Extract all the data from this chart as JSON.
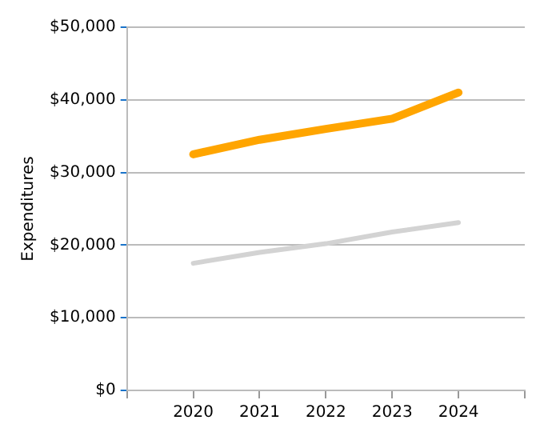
{
  "chart_data": {
    "type": "line",
    "ylabel": "Expenditures",
    "x": [
      2020,
      2021,
      2022,
      2023,
      2024
    ],
    "xlim": [
      2019,
      2025
    ],
    "xticks": [
      2020,
      2021,
      2022,
      2023,
      2024
    ],
    "ylim": [
      0,
      50000
    ],
    "yticks": [
      {
        "value": 0,
        "label": "$0"
      },
      {
        "value": 10000,
        "label": "$10,000"
      },
      {
        "value": 20000,
        "label": "$20,000"
      },
      {
        "value": 30000,
        "label": "$30,000"
      },
      {
        "value": 40000,
        "label": "$40,000"
      },
      {
        "value": 50000,
        "label": "$50,000"
      }
    ],
    "grid": "y",
    "legend": false,
    "marker": "none",
    "line_style": "solid",
    "series": [
      {
        "color": "#ffa500",
        "values": [
          32500,
          34500,
          36000,
          37400,
          41000
        ]
      },
      {
        "color": "#d3d3d3",
        "values": [
          17500,
          19000,
          20200,
          21800,
          23100
        ]
      }
    ]
  }
}
